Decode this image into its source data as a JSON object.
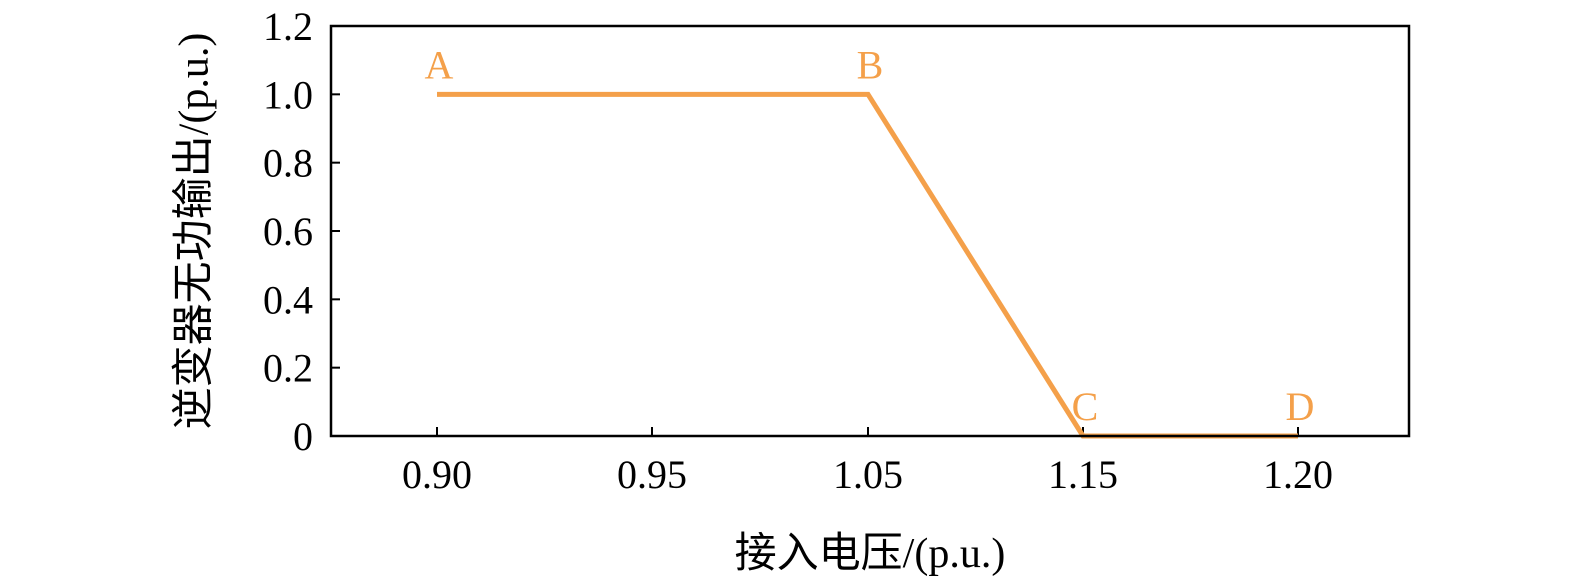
{
  "chart_data": {
    "type": "line",
    "title": "",
    "xlabel": "接入电压/(p.u.)",
    "ylabel": "逆变器无功输出/(p.u.)",
    "categories": [
      "0.90",
      "0.95",
      "1.05",
      "1.15",
      "1.20"
    ],
    "yticks": [
      "0",
      "0.2",
      "0.4",
      "0.6",
      "0.8",
      "1.0",
      "1.2"
    ],
    "ylim": [
      0,
      1.2
    ],
    "grid": false,
    "series": [
      {
        "color": "#F4A04A",
        "points": [
          {
            "x": "0.90",
            "y": 1.0
          },
          {
            "x": "1.05",
            "y": 1.0
          },
          {
            "x": "1.15",
            "y": 0.0
          },
          {
            "x": "1.20",
            "y": 0.0
          }
        ]
      }
    ],
    "point_labels": [
      {
        "text": "A",
        "x": "0.90",
        "y": 1.0
      },
      {
        "text": "B",
        "x": "1.05",
        "y": 1.0
      },
      {
        "text": "C",
        "x": "1.15",
        "y": 0.0
      },
      {
        "text": "D",
        "x": "1.20",
        "y": 0.0
      }
    ]
  }
}
